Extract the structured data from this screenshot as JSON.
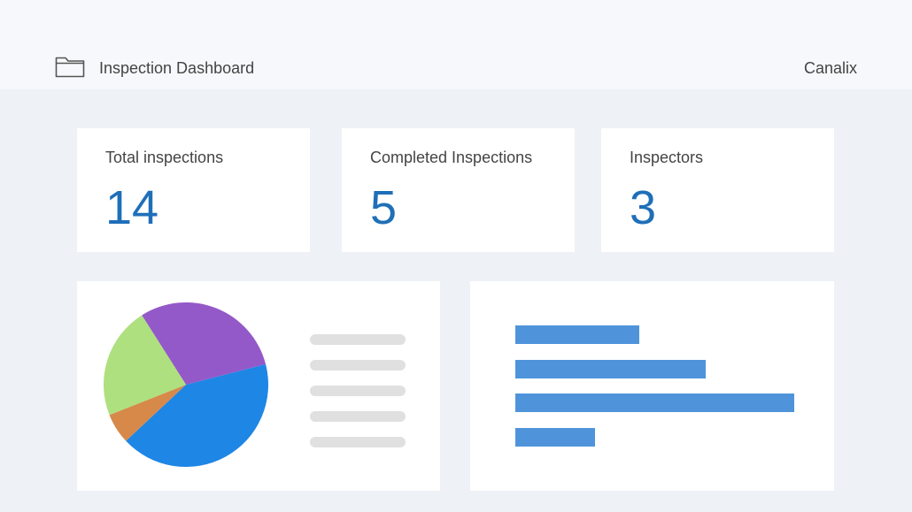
{
  "header": {
    "title": "Inspection Dashboard",
    "brand": "Canalix",
    "icon": "folder-icon"
  },
  "stats": [
    {
      "label": "Total inspections",
      "value": "14"
    },
    {
      "label": "Completed Inspections",
      "value": "5"
    },
    {
      "label": "Inspectors",
      "value": "3"
    }
  ],
  "colors": {
    "accent": "#1f6fb8",
    "pie": [
      "#9459c8",
      "#1e86e5",
      "#d7894a",
      "#aee080"
    ],
    "bars": "#4f94da",
    "legend_placeholder": "#e0e0e0"
  },
  "chart_data": [
    {
      "type": "pie",
      "values": [
        30,
        42,
        6,
        22
      ],
      "legend_placeholder_rows": 5
    },
    {
      "type": "bar",
      "orientation": "horizontal",
      "values": [
        28,
        43,
        63,
        18
      ]
    }
  ]
}
